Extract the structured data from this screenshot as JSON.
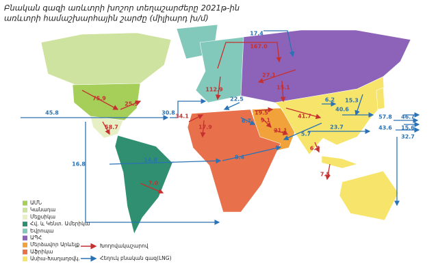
{
  "header": {
    "title": "Բնական գազի առևտրի խոշոր տեղաշարժերը 2021թ-ին",
    "subtitle": "առևտրի համաշխարհային շարժը (միլիարդ խ/մ)"
  },
  "legend": {
    "regions": [
      {
        "label": "ԱՄՆ",
        "color": "#a6cf5a"
      },
      {
        "label": "Կանադա",
        "color": "#cfe3a0"
      },
      {
        "label": "Մեքսիկա",
        "color": "#e7f0c4"
      },
      {
        "label": "Հվ. և Կենտ. Ամերիկա",
        "color": "#2f8f70"
      },
      {
        "label": "Եվրոպա",
        "color": "#82c9bb"
      },
      {
        "label": "ԱՊՀ",
        "color": "#8c63b8"
      },
      {
        "label": "Մերձավոր Արևելք",
        "color": "#f2a23a"
      },
      {
        "label": "Աֆրիկա",
        "color": "#e8714c"
      },
      {
        "label": "Ասիա-Խաղաղօվկ.",
        "color": "#f6e56a"
      }
    ],
    "pipeline": {
      "label": "Խողովակաշարով",
      "color": "#c62f2f"
    },
    "lng": {
      "label": "Հեղուկ բնական գազ(LNG)",
      "color": "#2a72b5"
    }
  },
  "pipeline_flows": [
    "75.9",
    "25.5",
    "58.7",
    "7.0",
    "167.0",
    "27.1",
    "112.9",
    "15.1",
    "34.1",
    "17.9",
    "9.1",
    "21.1",
    "19.5",
    "41.7",
    "6.7",
    "7.5"
  ],
  "lng_flows": [
    "17.4",
    "45.8",
    "30.8",
    "22.5",
    "16.8",
    "14.8",
    "8.4",
    "5.7",
    "6.2",
    "40.6",
    "23.7",
    "57.8",
    "46.7",
    "43.6",
    "15.6",
    "32.7",
    "15.3",
    "6.7"
  ]
}
